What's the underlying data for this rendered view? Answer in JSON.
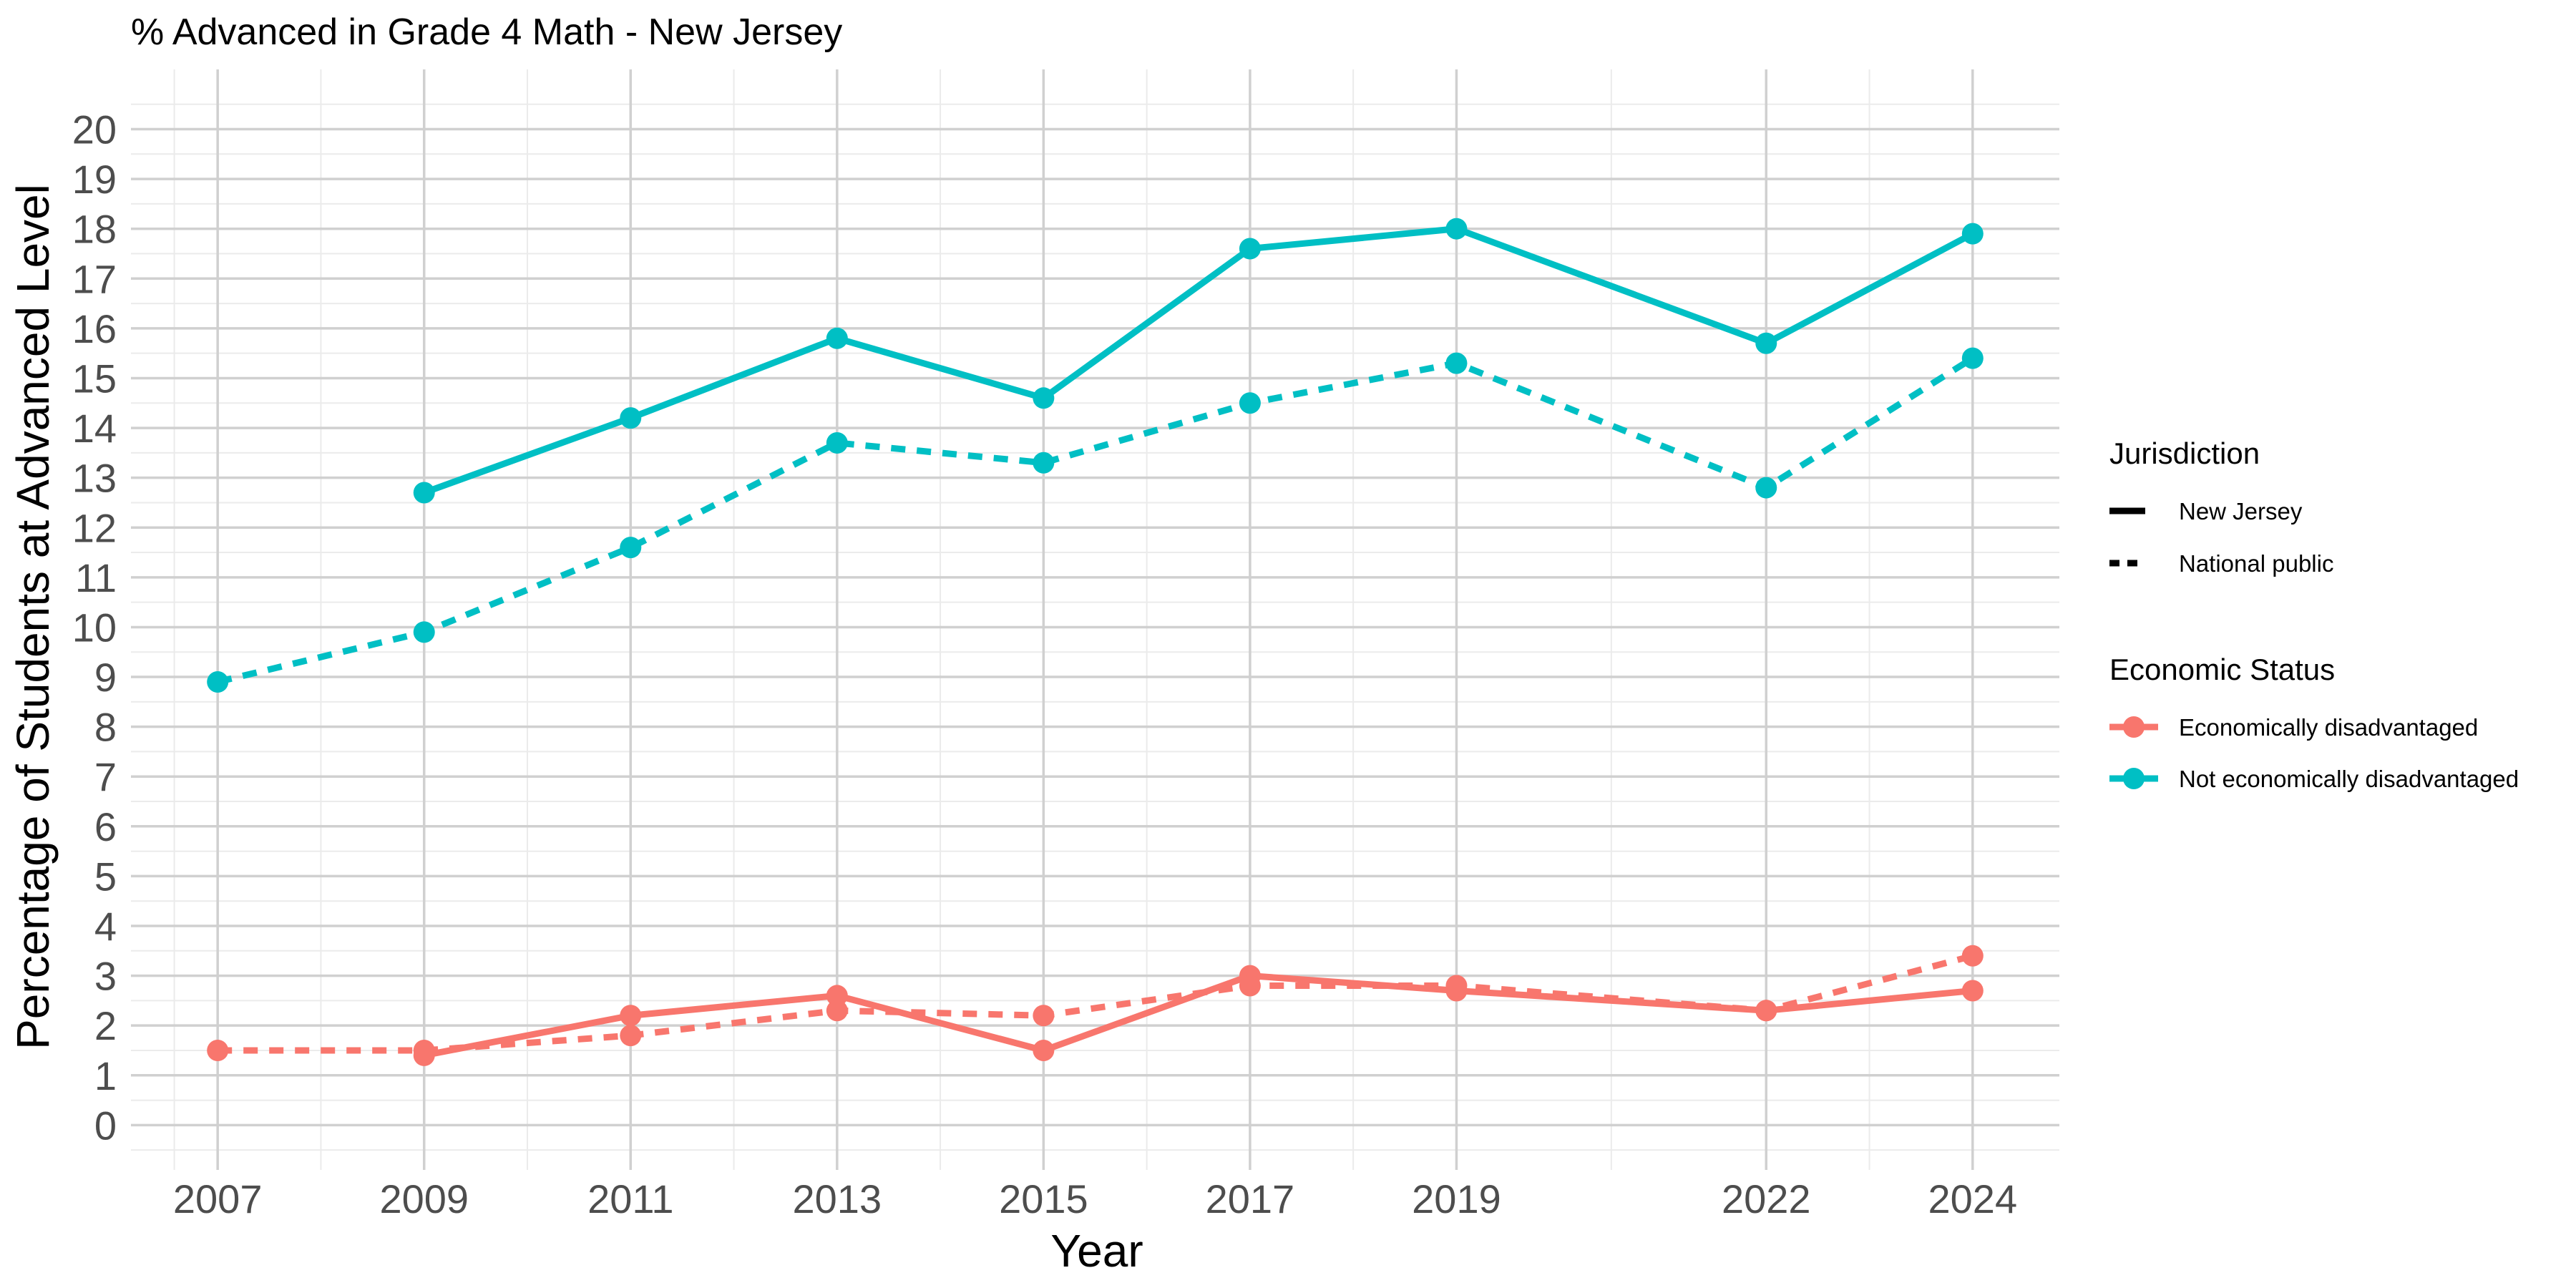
{
  "chart_data": {
    "type": "line",
    "title": "% Advanced in Grade 4 Math - New Jersey",
    "xlabel": "Year",
    "ylabel": "Percentage of Students at Advanced Level",
    "x_ticks": [
      2007,
      2009,
      2011,
      2013,
      2015,
      2017,
      2019,
      2022,
      2024
    ],
    "y_ticks": [
      0,
      1,
      2,
      3,
      4,
      5,
      6,
      7,
      8,
      9,
      10,
      11,
      12,
      13,
      14,
      15,
      16,
      17,
      18,
      19,
      20
    ],
    "xlim": [
      2006.16,
      2024.84
    ],
    "ylim": [
      -0.9,
      21.2
    ],
    "grid": true,
    "legend_position": "right",
    "legends": [
      {
        "title": "Jurisdiction",
        "entries": [
          {
            "label": "New Jersey",
            "linetype": "solid"
          },
          {
            "label": "National public",
            "linetype": "dashed"
          }
        ]
      },
      {
        "title": "Economic Status",
        "entries": [
          {
            "label": "Economically disadvantaged",
            "color": "#F8766D"
          },
          {
            "label": "Not economically disadvantaged",
            "color": "#00BFC4"
          }
        ]
      }
    ],
    "series": [
      {
        "jurisdiction": "New Jersey",
        "status": "Not economically disadvantaged",
        "color": "#00BFC4",
        "linetype": "solid",
        "points": [
          [
            2009,
            12.7
          ],
          [
            2011,
            14.2
          ],
          [
            2013,
            15.8
          ],
          [
            2015,
            14.6
          ],
          [
            2017,
            17.6
          ],
          [
            2019,
            18.0
          ],
          [
            2022,
            15.7
          ],
          [
            2024,
            17.9
          ]
        ]
      },
      {
        "jurisdiction": "National public",
        "status": "Not economically disadvantaged",
        "color": "#00BFC4",
        "linetype": "dashed",
        "points": [
          [
            2007,
            8.9
          ],
          [
            2009,
            9.9
          ],
          [
            2011,
            11.6
          ],
          [
            2013,
            13.7
          ],
          [
            2015,
            13.3
          ],
          [
            2017,
            14.5
          ],
          [
            2019,
            15.3
          ],
          [
            2022,
            12.8
          ],
          [
            2024,
            15.4
          ]
        ]
      },
      {
        "jurisdiction": "New Jersey",
        "status": "Economically disadvantaged",
        "color": "#F8766D",
        "linetype": "solid",
        "points": [
          [
            2009,
            1.4
          ],
          [
            2011,
            2.2
          ],
          [
            2013,
            2.6
          ],
          [
            2015,
            1.5
          ],
          [
            2017,
            3.0
          ],
          [
            2019,
            2.7
          ],
          [
            2022,
            2.3
          ],
          [
            2024,
            2.7
          ]
        ]
      },
      {
        "jurisdiction": "National public",
        "status": "Economically disadvantaged",
        "color": "#F8766D",
        "linetype": "dashed",
        "points": [
          [
            2007,
            1.5
          ],
          [
            2009,
            1.5
          ],
          [
            2011,
            1.8
          ],
          [
            2013,
            2.3
          ],
          [
            2015,
            2.2
          ],
          [
            2017,
            2.8
          ],
          [
            2019,
            2.8
          ],
          [
            2022,
            2.3
          ],
          [
            2024,
            3.4
          ]
        ]
      }
    ]
  }
}
